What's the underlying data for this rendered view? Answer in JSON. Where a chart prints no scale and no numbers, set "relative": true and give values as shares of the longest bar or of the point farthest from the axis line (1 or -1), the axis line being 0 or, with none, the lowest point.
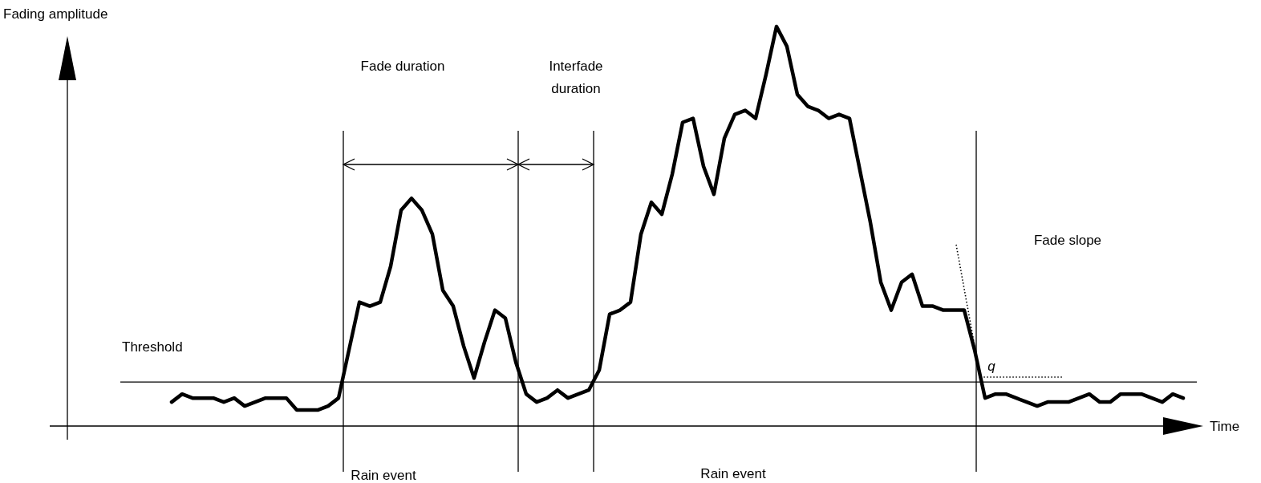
{
  "chart_data": {
    "type": "line",
    "relative": true,
    "xlabel": "Time",
    "ylabel": "Fading amplitude",
    "categories": [
      null,
      null,
      null,
      null,
      null,
      null,
      null,
      null,
      null,
      null,
      null,
      null,
      null,
      null,
      null,
      null,
      null,
      null,
      null,
      null,
      null,
      null,
      null,
      null,
      null,
      null,
      null,
      null,
      null,
      null,
      null,
      null,
      null,
      null,
      null,
      null,
      null,
      null,
      null,
      null,
      null,
      null,
      null,
      null,
      null,
      null,
      null,
      null,
      null,
      null,
      null,
      null,
      null,
      null,
      null,
      null,
      null,
      null,
      null,
      null,
      null,
      null,
      null,
      null,
      null,
      null,
      null,
      null,
      null,
      null,
      null,
      null,
      null,
      null,
      null,
      null,
      null,
      null,
      null,
      null,
      null,
      null,
      null,
      null,
      null,
      null,
      null,
      null,
      null,
      null,
      null,
      null,
      null,
      null,
      null,
      null,
      null,
      null
    ],
    "series": [
      {
        "color": "#000000",
        "values": [
          0.06,
          0.08,
          0.07,
          0.07,
          0.07,
          0.06,
          0.07,
          0.05,
          0.06,
          0.07,
          0.07,
          0.07,
          0.04,
          0.04,
          0.04,
          0.05,
          0.07,
          0.19,
          0.31,
          0.3,
          0.31,
          0.4,
          0.54,
          0.57,
          0.54,
          0.48,
          0.34,
          0.3,
          0.2,
          0.12,
          0.21,
          0.29,
          0.27,
          0.16,
          0.08,
          0.06,
          0.07,
          0.09,
          0.07,
          0.08,
          0.09,
          0.14,
          0.28,
          0.29,
          0.31,
          0.48,
          0.56,
          0.53,
          0.63,
          0.76,
          0.77,
          0.65,
          0.58,
          0.72,
          0.78,
          0.79,
          0.77,
          0.88,
          1.0,
          0.95,
          0.83,
          0.8,
          0.79,
          0.77,
          0.78,
          0.77,
          0.64,
          0.51,
          0.36,
          0.29,
          0.36,
          0.38,
          0.3,
          0.3,
          0.29,
          0.29,
          0.29,
          0.19,
          0.07,
          0.08,
          0.08,
          0.07,
          0.06,
          0.05,
          0.06,
          0.06,
          0.06,
          0.07,
          0.08,
          0.06,
          0.06,
          0.08,
          0.08,
          0.08,
          0.07,
          0.06,
          0.08,
          0.07
        ]
      }
    ],
    "ref_lines": [
      {
        "axis": "y",
        "value": 0.11,
        "label": "Threshold",
        "color": "#000000"
      }
    ],
    "annotations": [
      "Fade duration",
      "Interfade duration",
      "Fade slope",
      "q",
      "Rain event",
      "Rain event"
    ]
  }
}
